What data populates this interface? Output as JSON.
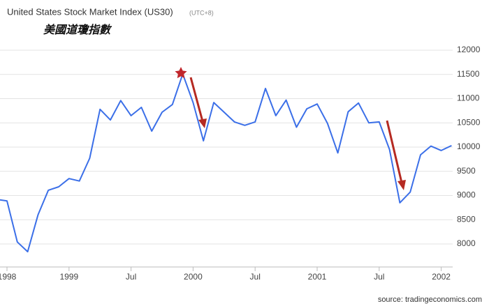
{
  "chart_data": {
    "type": "line",
    "title": "United States Stock Market Index (US30)",
    "timezone": "(UTC+8)",
    "annotation": "美國道瓊指數",
    "source": "source: tradingeconomics.com",
    "categories": [
      null,
      "1998",
      null,
      null,
      null,
      null,
      null,
      "1999",
      null,
      null,
      null,
      null,
      null,
      "Jul",
      null,
      null,
      null,
      null,
      null,
      "2000",
      null,
      null,
      null,
      null,
      null,
      "Jul",
      null,
      null,
      null,
      null,
      null,
      "2001",
      null,
      null,
      null,
      null,
      null,
      "Jul",
      null,
      null,
      null,
      null,
      null,
      "2002",
      null
    ],
    "series": [
      {
        "color": "#3b6fe8",
        "values": [
          8920,
          8890,
          8040,
          7840,
          8600,
          9110,
          9180,
          9350,
          9300,
          9770,
          10780,
          10560,
          10960,
          10650,
          10820,
          10330,
          10720,
          10880,
          11510,
          10920,
          10130,
          10920,
          10720,
          10520,
          10450,
          10520,
          11210,
          10650,
          10970,
          10410,
          10790,
          10890,
          10490,
          9880,
          10730,
          10910,
          10500,
          10520,
          9950,
          8850,
          9070,
          9840,
          10020,
          9930,
          10030
        ]
      }
    ],
    "ylim": [
      7525,
      12490
    ],
    "yticks": [
      8000,
      8500,
      9000,
      9500,
      10000,
      10500,
      11000,
      11500,
      12000
    ],
    "grid": true
  }
}
